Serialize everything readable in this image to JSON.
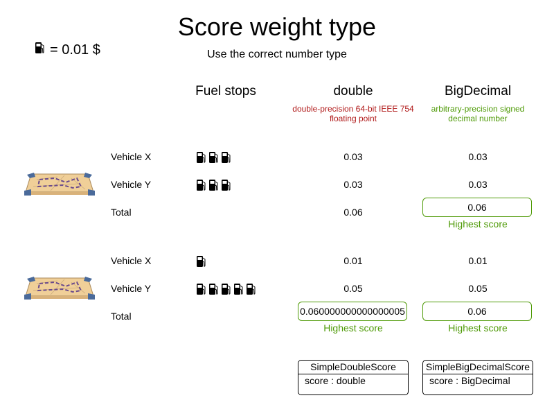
{
  "title": "Score weight type",
  "subtitle": "Use the correct number type",
  "legend": {
    "icon": "fuel-pump-icon",
    "text": "= 0.01 $"
  },
  "columns": {
    "fuel": "Fuel stops",
    "double": {
      "label": "double",
      "desc1": "double-precision 64-bit IEEE 754",
      "desc2": "floating point",
      "color": "#b01818"
    },
    "bigdecimal": {
      "label": "BigDecimal",
      "desc1": "arbitrary-precision signed",
      "desc2": "decimal number",
      "color": "#4e9a06"
    }
  },
  "scenarios": [
    {
      "rows": [
        {
          "label": "Vehicle X",
          "stops": 3,
          "double": "0.03",
          "bigdecimal": "0.03"
        },
        {
          "label": "Vehicle Y",
          "stops": 3,
          "double": "0.03",
          "bigdecimal": "0.03"
        }
      ],
      "total": {
        "label": "Total",
        "double": "0.06",
        "bigdecimal": "0.06",
        "highest": "bigdecimal"
      }
    },
    {
      "rows": [
        {
          "label": "Vehicle X",
          "stops": 1,
          "double": "0.01",
          "bigdecimal": "0.01"
        },
        {
          "label": "Vehicle Y",
          "stops": 5,
          "double": "0.05",
          "bigdecimal": "0.05"
        }
      ],
      "total": {
        "label": "Total",
        "double": "0.060000000000000005",
        "bigdecimal": "0.06",
        "highest": "both"
      }
    }
  ],
  "highest_label": "Highest score",
  "classes": [
    {
      "name": "SimpleDoubleScore",
      "field": "score : double"
    },
    {
      "name": "SimpleBigDecimalScore",
      "field": "score : BigDecimal"
    }
  ]
}
